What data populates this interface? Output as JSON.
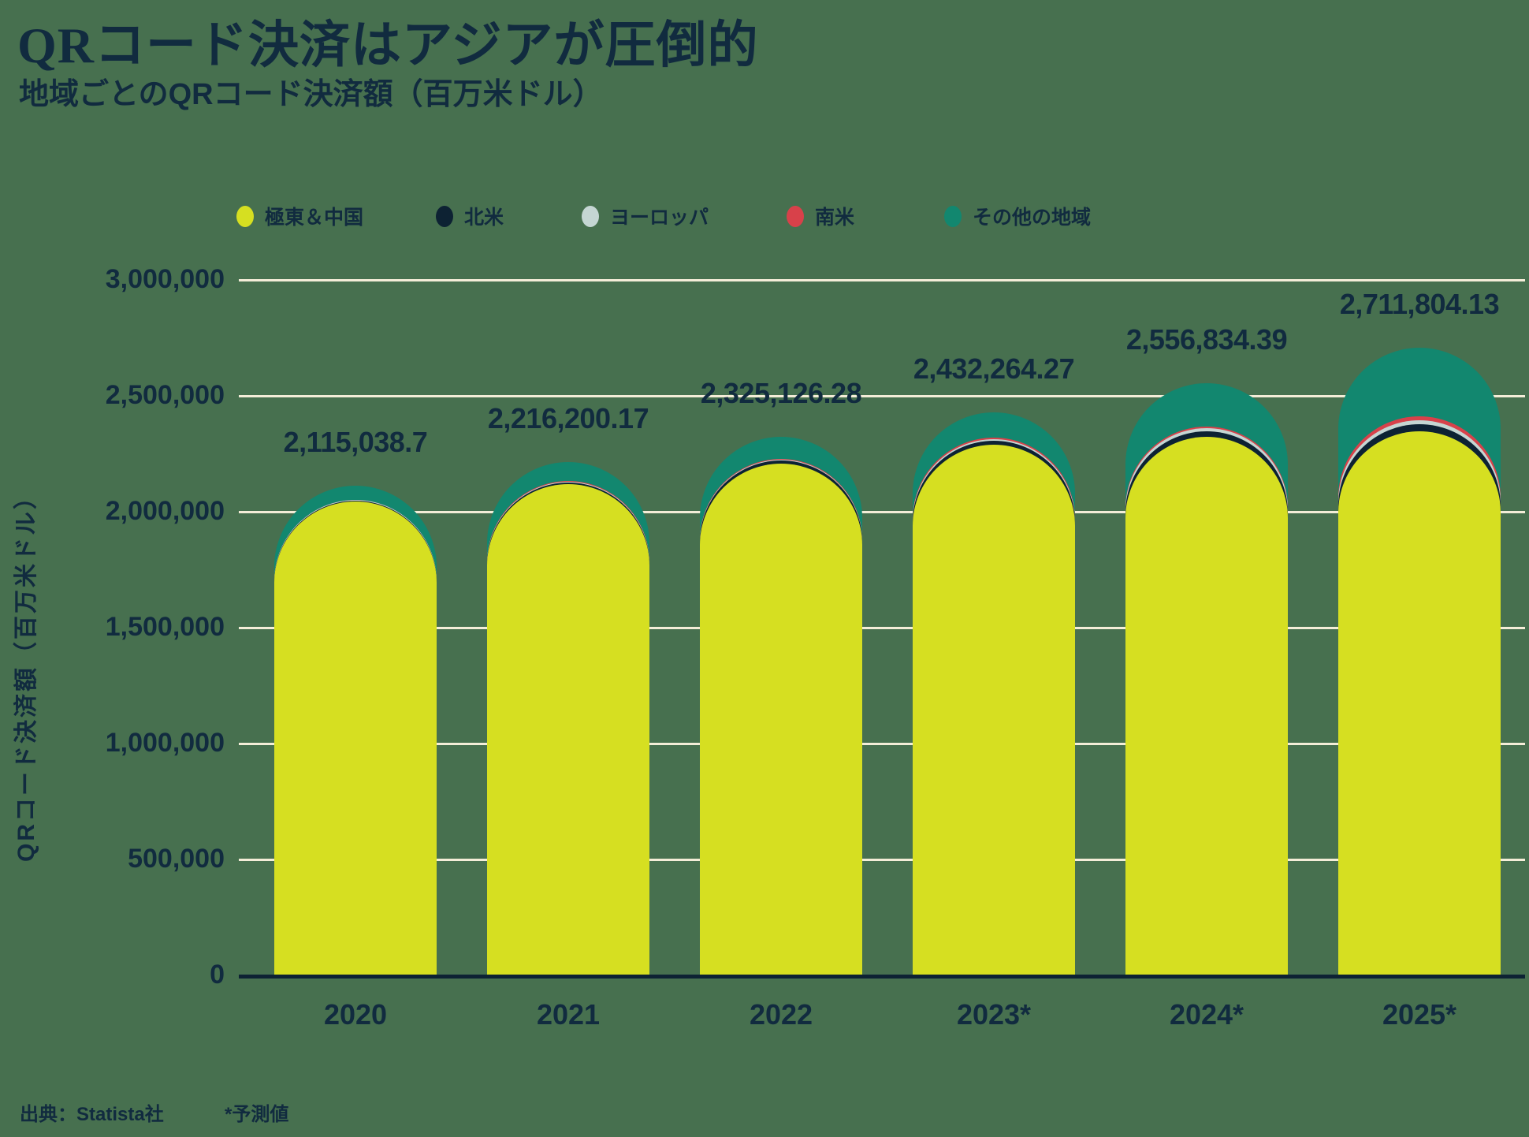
{
  "header": {
    "title": "QRコード決済はアジアが圧倒的",
    "subtitle": "地域ごとのQRコード決済額（百万米ドル）"
  },
  "legend": {
    "items": [
      {
        "label": "極東＆中国",
        "color": "#D6DF21"
      },
      {
        "label": "北米",
        "color": "#0D2233"
      },
      {
        "label": "ヨーロッパ",
        "color": "#C5D6D3"
      },
      {
        "label": "南米",
        "color": "#D8414A"
      },
      {
        "label": "その他の地域",
        "color": "#12876F"
      }
    ]
  },
  "footer": {
    "source": "出典：Statista社",
    "note": "*予測値"
  },
  "colors": {
    "background": "#47704F",
    "text": "#112B3F",
    "gridline": "#F4EDD8",
    "axis_line": "#0D2233"
  },
  "chart_data": {
    "type": "bar",
    "stacked": true,
    "rounded_tops": true,
    "title": "QRコード決済はアジアが圧倒的",
    "subtitle": "地域ごとのQRコード決済額（百万米ドル）",
    "xlabel": "",
    "ylabel": "QRコード決済額（百万米ドル）",
    "categories": [
      "2020",
      "2021",
      "2022",
      "2023*",
      "2024*",
      "2025*"
    ],
    "series": [
      {
        "name": "極東＆中国",
        "color": "#D6DF21",
        "values": [
          2046000,
          2122000,
          2212000,
          2292000,
          2328000,
          2352000
        ]
      },
      {
        "name": "北米",
        "color": "#0D2233",
        "values": [
          5000,
          7000,
          11000,
          16000,
          23000,
          30000
        ]
      },
      {
        "name": "ヨーロッパ",
        "color": "#C5D6D3",
        "values": [
          2300,
          3200,
          5000,
          7500,
          11500,
          17500
        ]
      },
      {
        "name": "南米",
        "color": "#D8414A",
        "values": [
          1800,
          2600,
          4100,
          6000,
          9500,
          17000
        ]
      },
      {
        "name": "その他の地域",
        "color": "#12876F",
        "values": [
          59938.7,
          81400.17,
          93026.28,
          110764.27,
          184834.39,
          295304.13
        ]
      }
    ],
    "series_values_estimated": true,
    "totals": [
      2115038.7,
      2216200.17,
      2325126.28,
      2432264.27,
      2556834.39,
      2711804.13
    ],
    "total_labels": [
      "2,115,038.7",
      "2,216,200.17",
      "2,325,126.28",
      "2,432,264.27",
      "2,556,834.39",
      "2,711,804.13"
    ],
    "ylim": [
      0,
      3000000
    ],
    "ytick_interval": 500000,
    "ytick_labels": [
      "0",
      "500,000",
      "1,000,000",
      "1,500,000",
      "2,000,000",
      "2,500,000",
      "3,000,000"
    ],
    "grid": true,
    "legend_position": "top"
  }
}
